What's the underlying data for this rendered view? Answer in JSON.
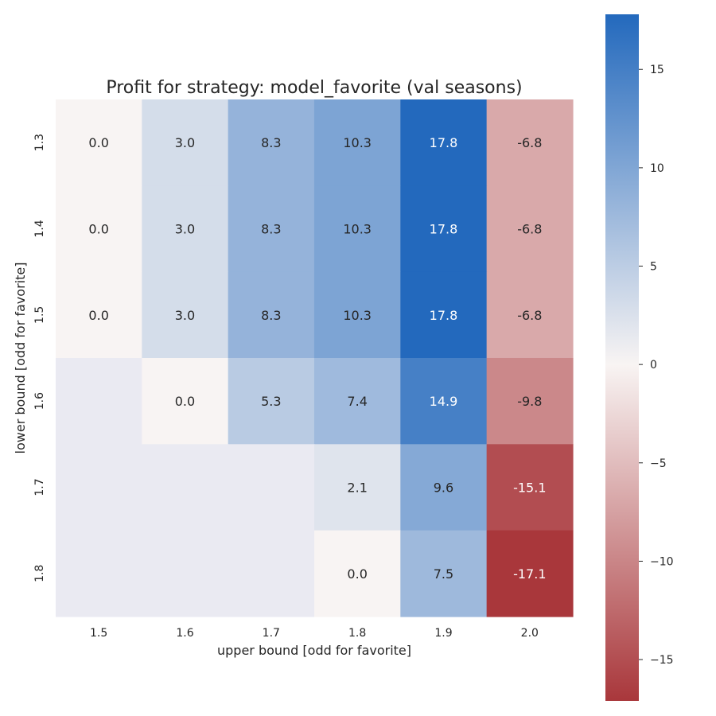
{
  "chart_data": {
    "type": "heatmap",
    "title": "Profit for strategy: model_favorite (val seasons)",
    "xlabel": "upper bound [odd for favorite]",
    "ylabel": "lower bound [odd for favorite]",
    "x_categories": [
      "1.5",
      "1.6",
      "1.7",
      "1.8",
      "1.9",
      "2.0"
    ],
    "y_categories": [
      "1.3",
      "1.4",
      "1.5",
      "1.6",
      "1.7",
      "1.8"
    ],
    "values": [
      [
        0.0,
        3.0,
        8.3,
        10.3,
        17.8,
        -6.8
      ],
      [
        0.0,
        3.0,
        8.3,
        10.3,
        17.8,
        -6.8
      ],
      [
        0.0,
        3.0,
        8.3,
        10.3,
        17.8,
        -6.8
      ],
      [
        null,
        0.0,
        5.3,
        7.4,
        14.9,
        -9.8
      ],
      [
        null,
        null,
        null,
        2.1,
        9.6,
        -15.1
      ],
      [
        null,
        null,
        null,
        0.0,
        7.5,
        -17.1
      ]
    ],
    "missing_color": "#eaeaf2",
    "colormap": {
      "name": "diverging red-white-blue",
      "center": 0,
      "vmin": -17.1,
      "vmax": 17.8,
      "low_color": "#a9373b",
      "mid_color": "#f8f4f3",
      "high_color": "#2369bd"
    },
    "colorbar": {
      "ticks": [
        15,
        10,
        5,
        0,
        -5,
        -10,
        -15
      ],
      "tick_labels": [
        "15",
        "10",
        "5",
        "0",
        "−5",
        "−10",
        "−15"
      ]
    }
  }
}
